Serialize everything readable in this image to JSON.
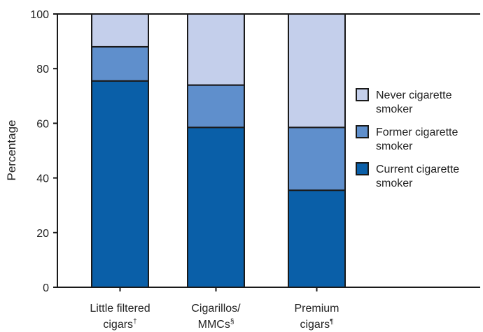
{
  "chart_data": {
    "type": "bar",
    "stacked": true,
    "ylabel": "Percentage",
    "ylim": [
      0,
      100
    ],
    "yticks": [
      0,
      20,
      40,
      60,
      80,
      100
    ],
    "grid": false,
    "legend_position": "right",
    "categories": [
      {
        "line1": "Little filtered",
        "line2": "cigars",
        "mark": "†"
      },
      {
        "line1": "Cigarillos/",
        "line2": "MMCs",
        "mark": "§"
      },
      {
        "line1": "Premium",
        "line2": "cigars",
        "mark": "¶"
      }
    ],
    "series": [
      {
        "name_line1": "Current cigarette",
        "name_line2": "smoker",
        "color": "#0a5fa8",
        "values": [
          75.5,
          58.5,
          35.5
        ]
      },
      {
        "name_line1": "Former cigarette",
        "name_line2": "smoker",
        "color": "#5f8fcc",
        "values": [
          12.5,
          15.5,
          23.0
        ]
      },
      {
        "name_line1": "Never cigarette",
        "name_line2": "smoker",
        "color": "#c4cfeb",
        "values": [
          12.0,
          26.0,
          41.5
        ]
      }
    ]
  }
}
